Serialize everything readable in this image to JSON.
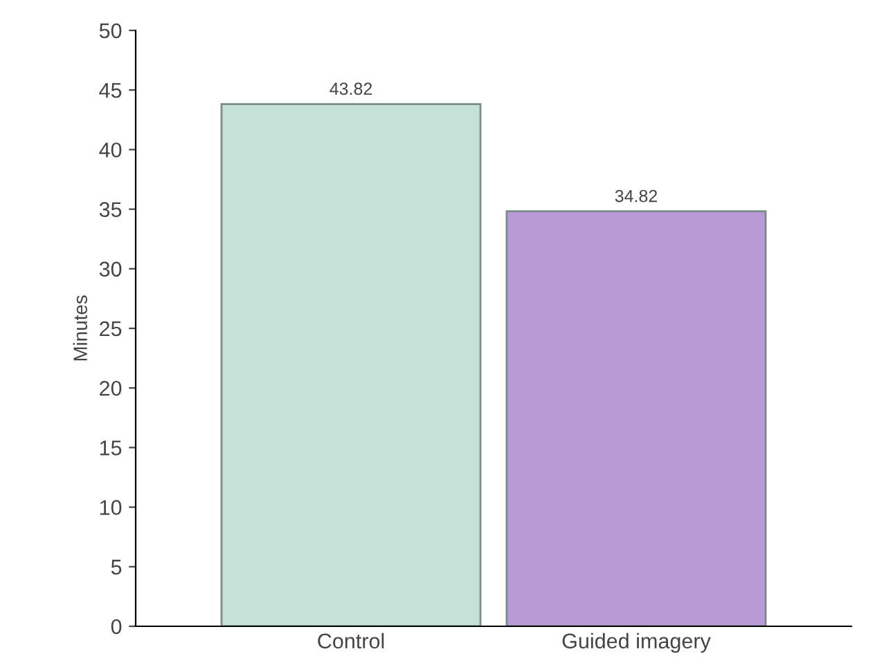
{
  "chart_data": {
    "type": "bar",
    "ylabel": "Minutes",
    "categories": [
      "Control",
      "Guided imagery"
    ],
    "values": [
      43.82,
      34.82
    ],
    "colors": [
      "#c6e2d8",
      "#b99ad6"
    ],
    "ylim": [
      0,
      50
    ],
    "yticks": [
      0,
      5,
      10,
      15,
      20,
      25,
      30,
      35,
      40,
      45,
      50
    ],
    "data_labels": true,
    "grid": false,
    "legend": false
  }
}
